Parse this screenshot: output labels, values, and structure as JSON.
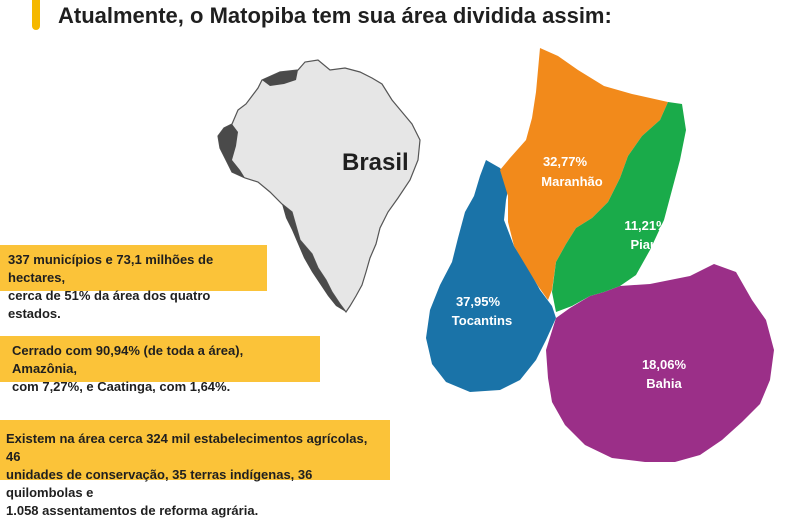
{
  "headline": "Atualmente, o Matopiba tem sua área dividida assim:",
  "colors": {
    "accent": "#f5b800",
    "box": "#fbc339",
    "maranhao": "#f28a1b",
    "piaui": "#1aab4a",
    "tocantins": "#1a73a8",
    "bahia": "#9b2f88",
    "brasil_fill": "#e6e6e6",
    "brasil_edge": "#555555"
  },
  "map": {
    "brasil_label": "Brasil",
    "regions": [
      {
        "id": "maranhao",
        "percent": "32,77%",
        "name": "Maranhão"
      },
      {
        "id": "piaui",
        "percent": "11,21%",
        "name": "Piauí"
      },
      {
        "id": "tocantins",
        "percent": "37,95%",
        "name": "Tocantins"
      },
      {
        "id": "bahia",
        "percent": "18,06%",
        "name": "Bahia"
      }
    ]
  },
  "info": {
    "box1": [
      "337 municípios e 73,1 milhões de hectares,",
      "cerca de 51% da área dos quatro estados."
    ],
    "box2": [
      "Cerrado com 90,94% (de toda a área), Amazônia,",
      "com 7,27%, e Caatinga, com 1,64%."
    ],
    "box3": [
      "Existem na área cerca 324 mil estabelecimentos agrícolas, 46",
      "unidades de conservação, 35 terras indígenas, 36 quilombolas e",
      "1.058 assentamentos de reforma agrária."
    ]
  }
}
